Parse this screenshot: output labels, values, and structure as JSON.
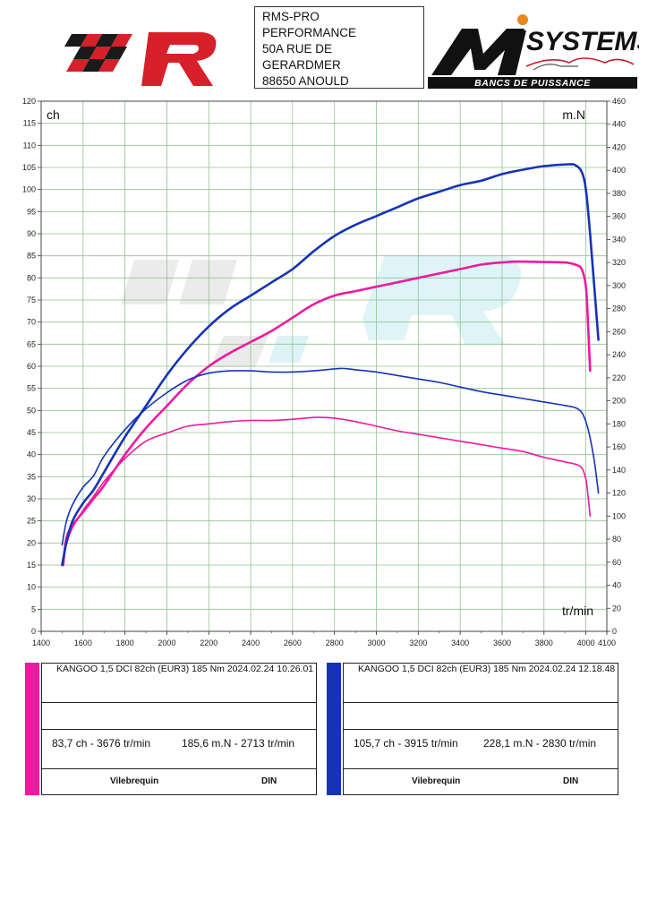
{
  "header": {
    "address_lines": [
      "RMS-PRO",
      "PERFORMANCE",
      "50A RUE DE",
      "GERARDMER",
      "88650 ANOULD"
    ],
    "brand_right": {
      "main": "SYSTEMS",
      "tagline": "BANCS DE PUISSANCE"
    }
  },
  "colors": {
    "run_a": "#ee1aa0",
    "run_b": "#1733b5",
    "grid": "#8fc48f"
  },
  "chart_data": {
    "type": "line",
    "x": [
      1500,
      1520,
      1550,
      1600,
      1650,
      1700,
      1800,
      1900,
      2000,
      2100,
      2200,
      2300,
      2400,
      2500,
      2600,
      2700,
      2800,
      2900,
      3000,
      3100,
      3200,
      3300,
      3400,
      3500,
      3600,
      3700,
      3800,
      3900,
      3950,
      4000,
      4020,
      4040,
      4060
    ],
    "xlim": [
      1400,
      4100
    ],
    "xticks": [
      1400,
      1600,
      1800,
      2000,
      2200,
      2400,
      2600,
      2800,
      3000,
      3200,
      3400,
      3600,
      3800,
      4000,
      4100
    ],
    "ylim_left": [
      0,
      120
    ],
    "ylim_right": [
      0,
      460
    ],
    "left_unit": "ch",
    "right_unit": "m.N",
    "x_unit": "tr/min",
    "grid": true,
    "series": [
      {
        "run": "a",
        "axis": "left",
        "kind": "power",
        "x": [
          1505,
          1520,
          1550,
          1600,
          1650,
          1700,
          1800,
          1900,
          2000,
          2100,
          2200,
          2300,
          2400,
          2500,
          2600,
          2700,
          2800,
          2900,
          3000,
          3100,
          3200,
          3300,
          3400,
          3500,
          3600,
          3676,
          3800,
          3900,
          3950,
          3980,
          4000,
          4010,
          4020
        ],
        "values": [
          15,
          21,
          24,
          27,
          30,
          33,
          40,
          46,
          51,
          56,
          60,
          63,
          65.5,
          68,
          71,
          74,
          76,
          77,
          78,
          79,
          80,
          81,
          82,
          83,
          83.5,
          83.7,
          83.6,
          83.5,
          83,
          82,
          78,
          70,
          59
        ]
      },
      {
        "run": "a",
        "axis": "right",
        "kind": "torque",
        "x": [
          1505,
          1520,
          1550,
          1600,
          1650,
          1700,
          1800,
          1900,
          2000,
          2100,
          2200,
          2300,
          2400,
          2500,
          2600,
          2713,
          2800,
          2900,
          3000,
          3100,
          3200,
          3300,
          3400,
          3500,
          3600,
          3700,
          3800,
          3900,
          3950,
          3980,
          4000,
          4010,
          4020
        ],
        "values": [
          57,
          75,
          90,
          105,
          117,
          130,
          150,
          165,
          172,
          178,
          180,
          182,
          183,
          183,
          184,
          185.6,
          185,
          182,
          178,
          174,
          171,
          168,
          165,
          162,
          159,
          156,
          151,
          147,
          145,
          142,
          132,
          118,
          100
        ]
      },
      {
        "run": "b",
        "axis": "left",
        "kind": "power",
        "x": [
          1500,
          1520,
          1550,
          1600,
          1650,
          1700,
          1800,
          1900,
          2000,
          2100,
          2200,
          2300,
          2400,
          2500,
          2600,
          2700,
          2800,
          2900,
          3000,
          3100,
          3200,
          3300,
          3400,
          3500,
          3600,
          3700,
          3800,
          3915,
          3950,
          3980,
          4000,
          4020,
          4040,
          4060
        ],
        "values": [
          15,
          20,
          25,
          29,
          32,
          36,
          44,
          51,
          58,
          64,
          69,
          73,
          76,
          79,
          82,
          86,
          89.5,
          92,
          94,
          96,
          98,
          99.5,
          101,
          102,
          103.5,
          104.5,
          105.3,
          105.7,
          105.5,
          104,
          100,
          90,
          78,
          66
        ]
      },
      {
        "run": "b",
        "axis": "right",
        "kind": "torque",
        "x": [
          1500,
          1520,
          1550,
          1600,
          1650,
          1700,
          1800,
          1900,
          2000,
          2100,
          2200,
          2300,
          2400,
          2500,
          2600,
          2700,
          2830,
          2900,
          3000,
          3100,
          3200,
          3300,
          3400,
          3500,
          3600,
          3700,
          3800,
          3900,
          3950,
          3980,
          4000,
          4020,
          4040,
          4060
        ],
        "values": [
          75,
          95,
          110,
          125,
          135,
          152,
          175,
          193,
          207,
          218,
          224,
          226,
          226,
          225,
          225,
          226,
          228.1,
          227,
          225,
          222,
          219,
          216,
          212,
          208,
          205,
          202,
          199,
          196,
          194,
          190,
          182,
          168,
          148,
          120
        ]
      }
    ]
  },
  "runs": [
    {
      "id": "a",
      "title": "KANGOO 1,5 DCI 82ch (EUR3) 185 Nm     2024.02.24 10.26.01",
      "power": "83,7 ch - 3676 tr/min",
      "torque": "185,6 m.N - 2713 tr/min",
      "method": "Vilebrequin",
      "norm": "DIN"
    },
    {
      "id": "b",
      "title": "KANGOO 1,5 DCI 82ch (EUR3) 185 Nm     2024.02.24 12.18.48",
      "power": "105,7 ch - 3915 tr/min",
      "torque": "228,1 m.N - 2830 tr/min",
      "method": "Vilebrequin",
      "norm": "DIN"
    }
  ]
}
